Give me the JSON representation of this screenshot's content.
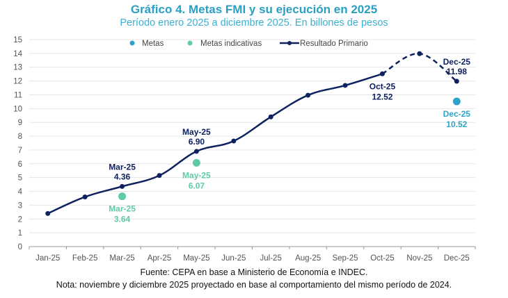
{
  "chart_data": {
    "type": "line",
    "title": "Gráfico 4. Metas FMI y su ejecución en 2025",
    "subtitle": "Período enero 2025 a diciembre 2025. En billones de pesos",
    "categories": [
      "Jan-25",
      "Feb-25",
      "Mar-25",
      "Apr-25",
      "May-25",
      "Jun-25",
      "Jul-25",
      "Aug-25",
      "Sep-25",
      "Oct-25",
      "Nov-25",
      "Dec-25"
    ],
    "ylim": [
      0,
      15
    ],
    "yticks": [
      0,
      1,
      2,
      3,
      4,
      5,
      6,
      7,
      8,
      9,
      10,
      11,
      12,
      13,
      14,
      15
    ],
    "grid": true,
    "legend_position": "top-center",
    "legend": [
      {
        "name": "Metas",
        "color": "#2ea3c9",
        "kind": "marker"
      },
      {
        "name": "Metas indicativas",
        "color": "#5ecba8",
        "kind": "marker"
      },
      {
        "name": "Resultado Primario",
        "color": "#0f2260",
        "kind": "line"
      }
    ],
    "series": [
      {
        "name": "Resultado Primario",
        "color": "#0f2260",
        "values": [
          2.4,
          3.6,
          4.36,
          5.15,
          6.9,
          7.65,
          9.4,
          10.97,
          11.68,
          12.52,
          13.98,
          11.98
        ],
        "projected_from_index": 9
      },
      {
        "name": "Metas indicativas",
        "color": "#5ecba8",
        "points": [
          {
            "x": "Mar-25",
            "y": 3.64
          },
          {
            "x": "May-25",
            "y": 6.07
          }
        ]
      },
      {
        "name": "Metas",
        "color": "#2ea3c9",
        "points": [
          {
            "x": "Dec-25",
            "y": 10.52
          }
        ]
      }
    ],
    "annotations": [
      {
        "x": "Mar-25",
        "y": 4.36,
        "line1": "Mar-25",
        "line2": "4.36",
        "color": "#0f2260",
        "pos": "above"
      },
      {
        "x": "May-25",
        "y": 6.9,
        "line1": "May-25",
        "line2": "6.90",
        "color": "#0f2260",
        "pos": "above"
      },
      {
        "x": "Oct-25",
        "y": 12.52,
        "line1": "Oct-25",
        "line2": "12.52",
        "color": "#0f2260",
        "pos": "below"
      },
      {
        "x": "Dec-25",
        "y": 11.98,
        "line1": "Dec-25",
        "line2": "11.98",
        "color": "#0f2260",
        "pos": "above"
      },
      {
        "x": "Mar-25",
        "y": 3.64,
        "line1": "Mar-25",
        "line2": "3.64",
        "color": "#5ecba8",
        "pos": "below"
      },
      {
        "x": "May-25",
        "y": 6.07,
        "line1": "May-25",
        "line2": "6.07",
        "color": "#5ecba8",
        "pos": "below"
      },
      {
        "x": "Dec-25",
        "y": 10.52,
        "line1": "Dec-25",
        "line2": "10.52",
        "color": "#2ea3c9",
        "pos": "below"
      }
    ]
  },
  "footer": {
    "source": "Fuente: CEPA en base a Ministerio de Economía e INDEC.",
    "note": "Nota: noviembre y diciembre 2025 proyectado en base al comportamiento del mismo período de 2024."
  }
}
